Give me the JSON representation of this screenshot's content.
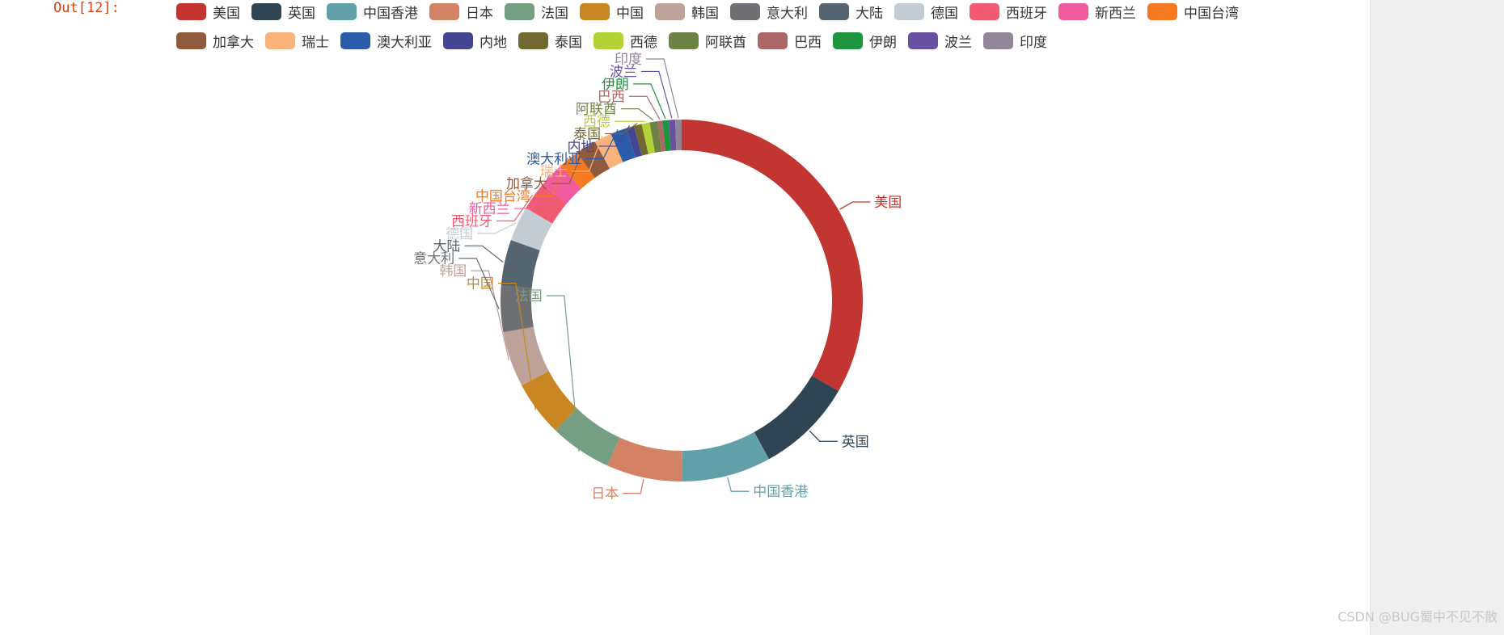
{
  "cell": {
    "out_prompt": "Out[12]:"
  },
  "watermark": "CSDN @BUG蜀中不见不散",
  "chart_data": {
    "type": "pie",
    "variant": "ring",
    "legend_position": "top",
    "categories": [
      "美国",
      "英国",
      "中国香港",
      "日本",
      "法国",
      "中国",
      "韩国",
      "意大利",
      "大陆",
      "德国",
      "西班牙",
      "新西兰",
      "中国台湾",
      "加拿大",
      "瑞士",
      "澳大利亚",
      "内地",
      "泰国",
      "西德",
      "阿联酋",
      "巴西",
      "伊朗",
      "波兰",
      "印度"
    ],
    "values": [
      235,
      61,
      56,
      48,
      39,
      35,
      35,
      29,
      29,
      22,
      18,
      16,
      13,
      13,
      11,
      10,
      5,
      5,
      5,
      5,
      3,
      4,
      4,
      4
    ],
    "colors": [
      "#c23531",
      "#2f4554",
      "#61a0a8",
      "#d48265",
      "#749f83",
      "#ca8622",
      "#bda29a",
      "#6e7074",
      "#546570",
      "#c4ccd3",
      "#f05b72",
      "#ef5b9c",
      "#f47920",
      "#905a3d",
      "#fab27b",
      "#2a5caa",
      "#444693",
      "#726930",
      "#b2d235",
      "#6d8346",
      "#ac6767",
      "#1d953f",
      "#6950a1",
      "#918597"
    ]
  }
}
